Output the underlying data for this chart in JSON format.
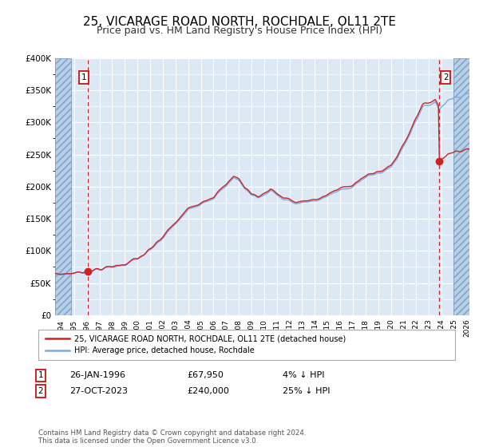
{
  "title": "25, VICARAGE ROAD NORTH, ROCHDALE, OL11 2TE",
  "subtitle": "Price paid vs. HM Land Registry's House Price Index (HPI)",
  "title_fontsize": 11,
  "subtitle_fontsize": 9,
  "ylim": [
    0,
    400000
  ],
  "xlim_start": 1993.5,
  "xlim_end": 2026.2,
  "bg_color": "#dce9f5",
  "grid_color": "#ffffff",
  "red_line_color": "#cc2222",
  "blue_line_color": "#7aabe0",
  "marker_color": "#cc2222",
  "vline_color": "#cc2222",
  "point1_date_num": 1996.07,
  "point1_price": 67950,
  "point1_label": "1",
  "point2_date_num": 2023.82,
  "point2_price": 240000,
  "point2_label": "2",
  "legend_entries": [
    "25, VICARAGE ROAD NORTH, ROCHDALE, OL11 2TE (detached house)",
    "HPI: Average price, detached house, Rochdale"
  ],
  "annotation1_date": "26-JAN-1996",
  "annotation1_price": "£67,950",
  "annotation1_hpi": "4% ↓ HPI",
  "annotation2_date": "27-OCT-2023",
  "annotation2_price": "£240,000",
  "annotation2_hpi": "25% ↓ HPI",
  "footer": "Contains HM Land Registry data © Crown copyright and database right 2024.\nThis data is licensed under the Open Government Licence v3.0.",
  "yticks": [
    0,
    50000,
    100000,
    150000,
    200000,
    250000,
    300000,
    350000,
    400000
  ],
  "ytick_labels": [
    "£0",
    "£50K",
    "£100K",
    "£150K",
    "£200K",
    "£250K",
    "£300K",
    "£350K",
    "£400K"
  ],
  "xticks": [
    1994,
    1995,
    1996,
    1997,
    1998,
    1999,
    2000,
    2001,
    2002,
    2003,
    2004,
    2005,
    2006,
    2007,
    2008,
    2009,
    2010,
    2011,
    2012,
    2013,
    2014,
    2015,
    2016,
    2017,
    2018,
    2019,
    2020,
    2021,
    2022,
    2023,
    2024,
    2025,
    2026
  ],
  "hatch_color": "#b8cfe8",
  "hatch_lw": 0.6,
  "hatch_left_start": 1993.5,
  "hatch_left_end": 1994.75,
  "hatch_right_start": 2024.92,
  "hatch_right_end": 2026.2
}
